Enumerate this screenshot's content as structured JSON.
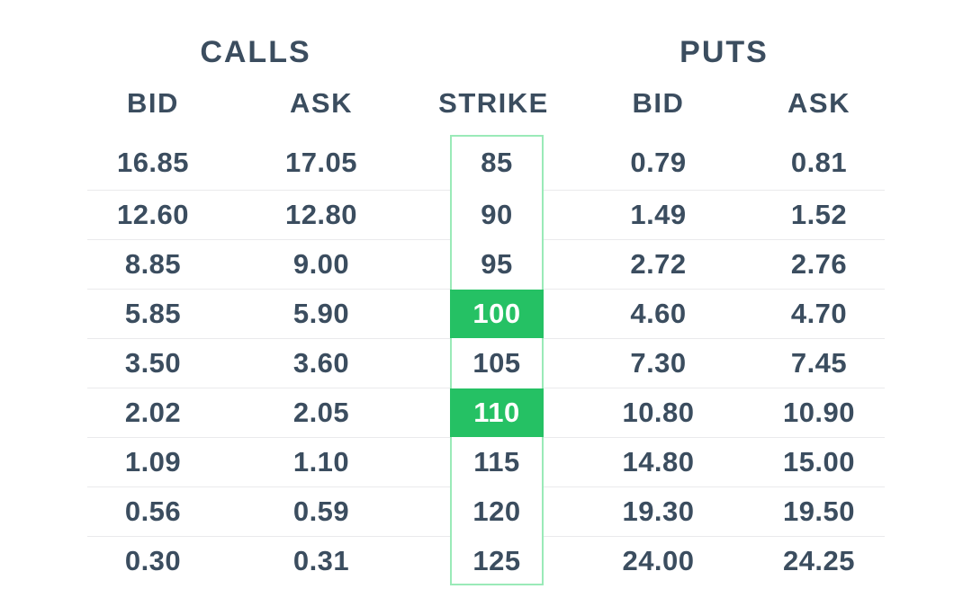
{
  "titles": {
    "calls": "CALLS",
    "puts": "PUTS"
  },
  "columns": {
    "calls_bid": "BID",
    "calls_ask": "ASK",
    "strike": "STRIKE",
    "puts_bid": "BID",
    "puts_ask": "ASK"
  },
  "colors": {
    "background": "#ffffff",
    "text": "#3b4d5f",
    "row_divider": "#eaeaec",
    "highlight_green": "#25c164",
    "highlight_text": "#ffffff",
    "strike_border": "#9aeab8"
  },
  "chain_rows": [
    {
      "call_bid": "16.85",
      "call_ask": "17.05",
      "strike": "85",
      "put_bid": "0.79",
      "put_ask": "0.81",
      "highlighted": false
    },
    {
      "call_bid": "12.60",
      "call_ask": "12.80",
      "strike": "90",
      "put_bid": "1.49",
      "put_ask": "1.52",
      "highlighted": false
    },
    {
      "call_bid": "8.85",
      "call_ask": "9.00",
      "strike": "95",
      "put_bid": "2.72",
      "put_ask": "2.76",
      "highlighted": false
    },
    {
      "call_bid": "5.85",
      "call_ask": "5.90",
      "strike": "100",
      "put_bid": "4.60",
      "put_ask": "4.70",
      "highlighted": true
    },
    {
      "call_bid": "3.50",
      "call_ask": "3.60",
      "strike": "105",
      "put_bid": "7.30",
      "put_ask": "7.45",
      "highlighted": false
    },
    {
      "call_bid": "2.02",
      "call_ask": "2.05",
      "strike": "110",
      "put_bid": "10.80",
      "put_ask": "10.90",
      "highlighted": true
    },
    {
      "call_bid": "1.09",
      "call_ask": "1.10",
      "strike": "115",
      "put_bid": "14.80",
      "put_ask": "15.00",
      "highlighted": false
    },
    {
      "call_bid": "0.56",
      "call_ask": "0.59",
      "strike": "120",
      "put_bid": "19.30",
      "put_ask": "19.50",
      "highlighted": false
    },
    {
      "call_bid": "0.30",
      "call_ask": "0.31",
      "strike": "125",
      "put_bid": "24.00",
      "put_ask": "24.25",
      "highlighted": false
    }
  ]
}
